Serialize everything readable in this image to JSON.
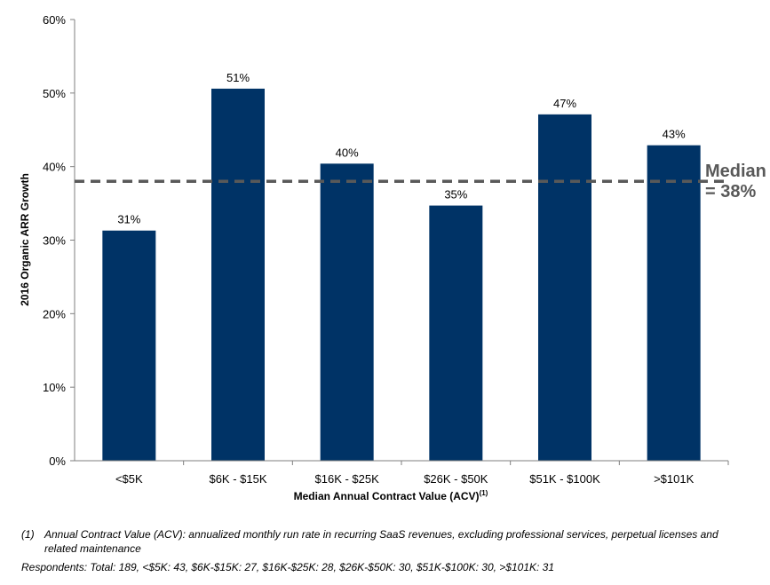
{
  "chart_data": {
    "type": "bar",
    "categories": [
      "<$5K",
      "$6K - $15K",
      "$16K - $25K",
      "$26K - $50K",
      "$51K - $100K",
      ">$101K"
    ],
    "values": [
      31.3,
      50.6,
      40.4,
      34.7,
      47.1,
      42.9
    ],
    "data_labels": [
      "31%",
      "51%",
      "40%",
      "35%",
      "47%",
      "43%"
    ],
    "ylabel": "2016 Organic ARR Growth",
    "xlabel": "Median Annual Contract Value (ACV)",
    "xlabel_superscript": "(1)",
    "ylim": [
      0,
      60
    ],
    "yticks": [
      0,
      10,
      20,
      30,
      40,
      50,
      60
    ],
    "ytick_labels": [
      "0%",
      "10%",
      "20%",
      "30%",
      "40%",
      "50%",
      "60%"
    ],
    "grid": false,
    "legend": "none",
    "bar_color": "#003366",
    "reference_line": {
      "value": 38,
      "label_line1": "Median",
      "label_line2": "= 38%",
      "color": "#595959",
      "style": "dashed"
    }
  },
  "footnotes": {
    "note1_marker": "(1)",
    "note1_text": "Annual Contract Value (ACV): annualized monthly run rate in recurring SaaS revenues, excluding professional services, perpetual licenses and related maintenance",
    "respondents": "Respondents: Total: 189, <$5K: 43, $6K-$15K: 27, $16K-$25K: 28, $26K-$50K: 30, $51K-$100K: 30, >$101K: 31"
  }
}
